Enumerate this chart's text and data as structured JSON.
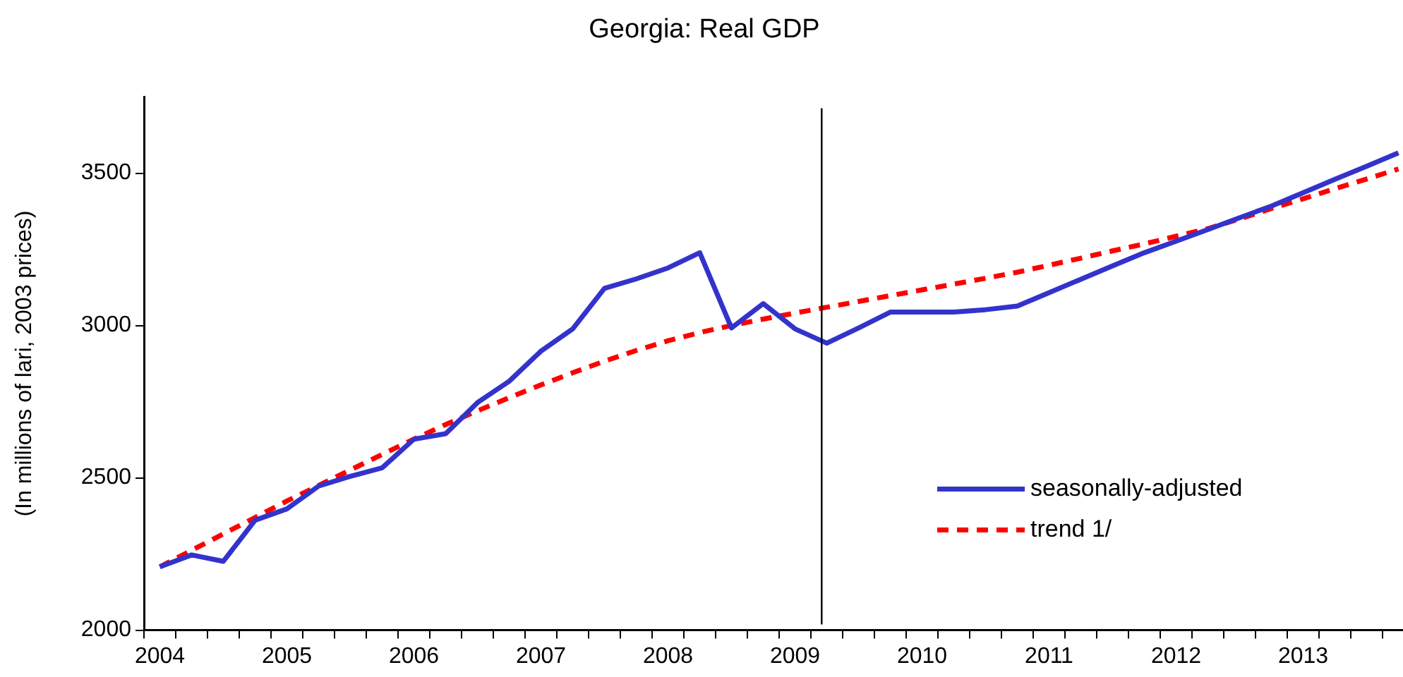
{
  "chart_data": {
    "type": "line",
    "title": "Georgia: Real GDP",
    "ylabel": "(In millions of lari, 2003 prices)",
    "x": [
      2004,
      2004.25,
      2004.5,
      2004.75,
      2005,
      2005.25,
      2005.5,
      2005.75,
      2006,
      2006.25,
      2006.5,
      2006.75,
      2007,
      2007.25,
      2007.5,
      2007.75,
      2008,
      2008.25,
      2008.5,
      2008.75,
      2009,
      2009.25,
      2009.5,
      2009.75,
      2010,
      2010.25,
      2010.5,
      2010.75,
      2011,
      2011.25,
      2011.5,
      2011.75,
      2012,
      2012.25,
      2012.5,
      2012.75,
      2013,
      2013.25,
      2013.5,
      2013.75
    ],
    "series": [
      {
        "name": "seasonally-adjusted",
        "color": "#3333cc",
        "line_style": "solid",
        "values": [
          2208,
          2247,
          2226,
          2361,
          2398,
          2473,
          2505,
          2533,
          2627,
          2645,
          2747,
          2817,
          2916,
          2989,
          3122,
          3153,
          3189,
          3239,
          2992,
          3072,
          2989,
          2942,
          2992,
          3044,
          3044,
          3044,
          3052,
          3064,
          3108,
          3152,
          3196,
          3239,
          3277,
          3315,
          3354,
          3392,
          3436,
          3480,
          3523,
          3567
        ]
      },
      {
        "name": "trend 1/",
        "color": "#ff0000",
        "line_style": "dashed",
        "values": [
          2208,
          2262,
          2316,
          2370,
          2424,
          2475,
          2526,
          2577,
          2627,
          2675,
          2720,
          2763,
          2805,
          2845,
          2883,
          2918,
          2950,
          2977,
          3000,
          3021,
          3041,
          3060,
          3079,
          3098,
          3117,
          3136,
          3155,
          3175,
          3198,
          3221,
          3245,
          3268,
          3293,
          3318,
          3350,
          3384,
          3416,
          3449,
          3481,
          3514
        ]
      }
    ],
    "xlim": [
      2003.875,
      2013.786
    ],
    "xticks": [
      {
        "value": 2003.875,
        "label": null
      },
      2004,
      {
        "value": 2004.125,
        "label": null
      },
      {
        "value": 2004.375,
        "label": null
      },
      {
        "value": 2004.625,
        "label": null
      },
      {
        "value": 2004.875,
        "label": null
      },
      2005,
      {
        "value": 2005.125,
        "label": null
      },
      {
        "value": 2005.375,
        "label": null
      },
      {
        "value": 2005.625,
        "label": null
      },
      {
        "value": 2005.875,
        "label": null
      },
      2006,
      {
        "value": 2006.125,
        "label": null
      },
      {
        "value": 2006.375,
        "label": null
      },
      {
        "value": 2006.625,
        "label": null
      },
      {
        "value": 2006.875,
        "label": null
      },
      2007,
      {
        "value": 2007.125,
        "label": null
      },
      {
        "value": 2007.375,
        "label": null
      },
      {
        "value": 2007.625,
        "label": null
      },
      {
        "value": 2007.875,
        "label": null
      },
      2008,
      {
        "value": 2008.125,
        "label": null
      },
      {
        "value": 2008.375,
        "label": null
      },
      {
        "value": 2008.625,
        "label": null
      },
      {
        "value": 2008.875,
        "label": null
      },
      2009,
      {
        "value": 2009.125,
        "label": null
      },
      {
        "value": 2009.375,
        "label": null
      },
      {
        "value": 2009.625,
        "label": null
      },
      {
        "value": 2009.875,
        "label": null
      },
      2010,
      {
        "value": 2010.125,
        "label": null
      },
      {
        "value": 2010.375,
        "label": null
      },
      {
        "value": 2010.625,
        "label": null
      },
      {
        "value": 2010.875,
        "label": null
      },
      2011,
      {
        "value": 2011.125,
        "label": null
      },
      {
        "value": 2011.375,
        "label": null
      },
      {
        "value": 2011.625,
        "label": null
      },
      {
        "value": 2011.875,
        "label": null
      },
      2012,
      {
        "value": 2012.125,
        "label": null
      },
      {
        "value": 2012.375,
        "label": null
      },
      {
        "value": 2012.625,
        "label": null
      },
      {
        "value": 2012.875,
        "label": null
      },
      2013,
      {
        "value": 2013.125,
        "label": null
      },
      {
        "value": 2013.375,
        "label": null
      },
      {
        "value": 2013.625,
        "label": null
      }
    ],
    "ylim": [
      2000,
      3750
    ],
    "yticks": [
      2000,
      2500,
      3000,
      3500
    ],
    "ref_lines": [
      {
        "axis": "x",
        "value": 2009.21,
        "color": "#000000"
      }
    ],
    "grid": false,
    "legend": "bottom right",
    "marker": "none"
  }
}
